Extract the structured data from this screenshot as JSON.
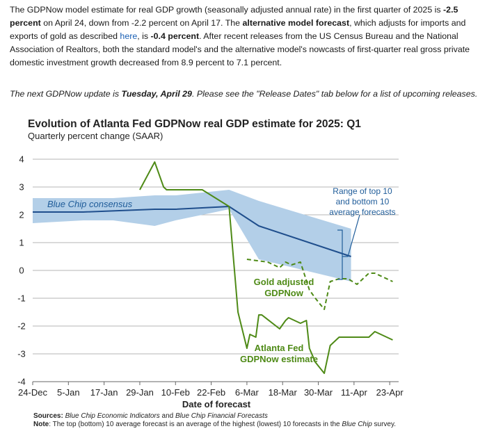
{
  "intro": {
    "s1": "The GDPNow model estimate for real GDP growth (seasonally adjusted annual rate) in the first quarter of 2025 is ",
    "s1b": "-2.5 percent",
    "s2": " on April 24, down from -2.2 percent on April 17. The ",
    "s2b": "alternative model forecast",
    "s3": ", which adjusts for imports and exports of gold as described ",
    "link": "here",
    "s4": ", is ",
    "s4b": "-0.4 percent",
    "s5": ". After recent releases from the US Census Bureau and the National Association of Realtors, both the standard model's and the alternative model's nowcasts of first-quarter real gross private domestic investment growth decreased from 8.9 percent to 7.1 percent."
  },
  "next_update": {
    "before": "The next GDPNow update is ",
    "date": "Tuesday, April 29",
    "after": ". Please see the \"Release Dates\" tab below for a list of upcoming releases."
  },
  "footer": {
    "sources_label": "Sources:",
    "sources_a": "Blue Chip Economic Indicators",
    "sources_and": " and ",
    "sources_b": "Blue Chip Financial Forecasts",
    "note_label": "Note",
    "note_text": ": The top (bottom) 10 average forecast is an average of the highest (lowest) 10 forecasts in the ",
    "note_italic": "Blue Chip",
    "note_end": " survey."
  },
  "chart_data": {
    "type": "line",
    "title": "Evolution of Atlanta Fed GDPNow real GDP estimate for 2025: Q1",
    "subtitle": "Quarterly percent change (SAAR)",
    "xlabel": "Date of forecast",
    "ylabel": "",
    "ylim": [
      -4,
      4
    ],
    "yticks": [
      4,
      3,
      2,
      1,
      0,
      -1,
      -2,
      -3,
      -4
    ],
    "xlim": [
      "2024-12-24",
      "2025-04-26"
    ],
    "xticks": [
      "24-Dec",
      "5-Jan",
      "17-Jan",
      "29-Jan",
      "10-Feb",
      "22-Feb",
      "6-Mar",
      "18-Mar",
      "30-Mar",
      "11-Apr",
      "23-Apr"
    ],
    "grid": true,
    "colors": {
      "gdpnow": "#4e8a16",
      "consensus": "#1f4e8c",
      "band": "#b3cfe8",
      "annotation_blue": "#1f5c99"
    },
    "annotations": {
      "consensus": "Blue Chip consensus",
      "range": [
        "Range of top 10",
        "and bottom 10",
        "average forecasts"
      ],
      "gold": [
        "Gold adjusted",
        "GDPNow"
      ],
      "gdpnow": [
        "Atlanta Fed",
        "GDPNow estimate"
      ]
    },
    "series": [
      {
        "name": "Atlanta Fed GDPNow estimate",
        "x": [
          "2025-01-29",
          "2025-02-03",
          "2025-02-06",
          "2025-02-07",
          "2025-02-19",
          "2025-02-28",
          "2025-03-03",
          "2025-03-06",
          "2025-03-07",
          "2025-03-09",
          "2025-03-10",
          "2025-03-11",
          "2025-03-17",
          "2025-03-19",
          "2025-03-20",
          "2025-03-24",
          "2025-03-26",
          "2025-03-27",
          "2025-03-29",
          "2025-04-01",
          "2025-04-03",
          "2025-04-06",
          "2025-04-09",
          "2025-04-16",
          "2025-04-18",
          "2025-04-24"
        ],
        "y": [
          2.9,
          3.9,
          3.0,
          2.9,
          2.9,
          2.3,
          -1.5,
          -2.8,
          -2.3,
          -2.4,
          -1.6,
          -1.6,
          -2.1,
          -1.8,
          -1.7,
          -1.9,
          -1.8,
          -2.8,
          -3.3,
          -3.7,
          -2.7,
          -2.4,
          -2.4,
          -2.4,
          -2.2,
          -2.5
        ]
      },
      {
        "name": "Gold adjusted GDPNow",
        "x": [
          "2025-03-06",
          "2025-03-13",
          "2025-03-17",
          "2025-03-19",
          "2025-03-21",
          "2025-03-24",
          "2025-03-27",
          "2025-03-29",
          "2025-04-01",
          "2025-04-03",
          "2025-04-06",
          "2025-04-09",
          "2025-04-12",
          "2025-04-16",
          "2025-04-18",
          "2025-04-24"
        ],
        "y": [
          0.4,
          0.3,
          0.1,
          0.3,
          0.2,
          0.3,
          -0.7,
          -1.0,
          -1.4,
          -0.4,
          -0.3,
          -0.3,
          -0.5,
          -0.1,
          -0.1,
          -0.4
        ]
      },
      {
        "name": "Blue Chip consensus",
        "x": [
          "2024-12-24",
          "2025-01-10",
          "2025-02-03",
          "2025-02-10",
          "2025-02-28",
          "2025-03-10",
          "2025-04-10"
        ],
        "y": [
          2.1,
          2.1,
          2.2,
          2.2,
          2.3,
          1.6,
          0.5
        ]
      },
      {
        "name": "Range of top 10 and bottom 10 average forecasts",
        "x": [
          "2024-12-24",
          "2025-01-10",
          "2025-01-20",
          "2025-02-03",
          "2025-02-10",
          "2025-02-28",
          "2025-03-10",
          "2025-04-10"
        ],
        "upper": [
          2.6,
          2.6,
          2.6,
          2.7,
          2.7,
          2.9,
          2.5,
          1.5
        ],
        "lower": [
          1.7,
          1.8,
          1.8,
          1.6,
          1.8,
          2.2,
          0.4,
          -0.4
        ]
      }
    ]
  }
}
